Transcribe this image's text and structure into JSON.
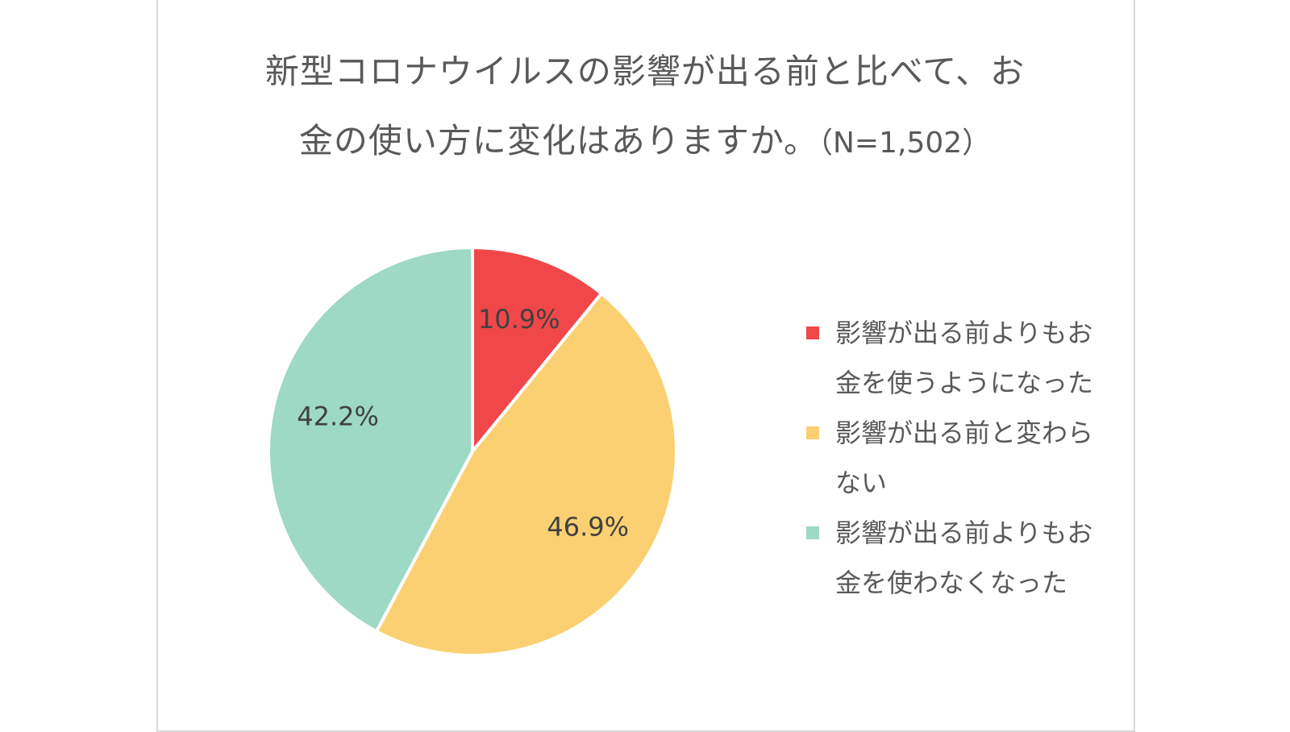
{
  "chart_data": {
    "type": "pie",
    "title_line1": "新型コロナウイルスの影響が出る前と比べて、お",
    "title_line2": "金の使い方に変化はありますか。",
    "sample_size_label": "（N=1,502）",
    "legend_position": "right",
    "series": [
      {
        "name": "影響が出る前よりもお\n金を使うようになった",
        "value": 10.9,
        "label": "10.9%",
        "color": "#f0474a"
      },
      {
        "name": "影響が出る前と変わら\nない",
        "value": 46.9,
        "label": "46.9%",
        "color": "#fad072"
      },
      {
        "name": "影響が出る前よりもお\n金を使わなくなった",
        "value": 42.2,
        "label": "42.2%",
        "color": "#9dd9c5"
      }
    ]
  }
}
